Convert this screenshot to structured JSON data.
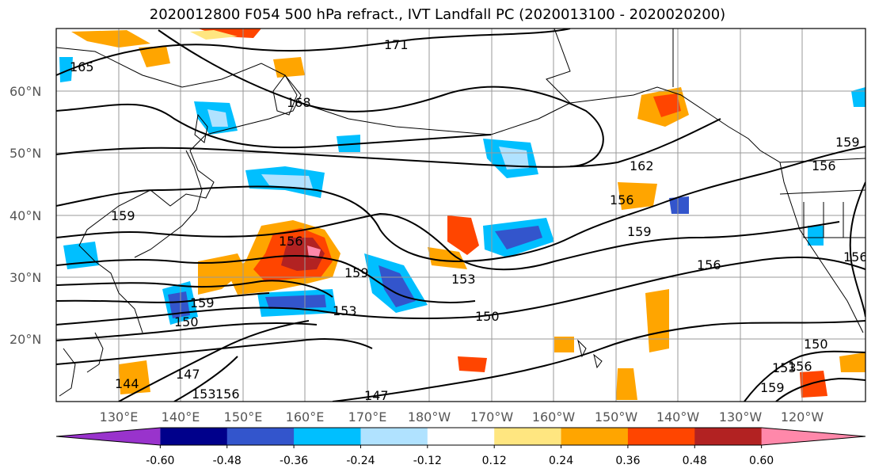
{
  "title": "2020012800 F054 500 hPa refract., IVT Landfall PC (2020013100 - 2020020200)",
  "map": {
    "lat_labels": [
      "60°N",
      "50°N",
      "40°N",
      "30°N",
      "20°N"
    ],
    "lon_labels": [
      "130°E",
      "140°E",
      "150°E",
      "160°E",
      "170°E",
      "180°W",
      "170°W",
      "160°W",
      "150°W",
      "140°W",
      "130°W",
      "120°W"
    ],
    "contour_labels": [
      "165",
      "171",
      "168",
      "159",
      "162",
      "156",
      "156",
      "159",
      "156",
      "159",
      "153",
      "150",
      "153",
      "159",
      "150",
      "144",
      "147",
      "153",
      "156",
      "147",
      "156",
      "159",
      "150",
      "153",
      "156",
      "159",
      "156"
    ]
  },
  "colorbar": {
    "colors": [
      "#9933cc",
      "#00008b",
      "#3355cc",
      "#00bfff",
      "#b0e2ff",
      "#ffffff",
      "#ffe680",
      "#ffa500",
      "#ff4500",
      "#b22222",
      "#ff88aa"
    ],
    "tick_labels": [
      "-0.60",
      "-0.48",
      "-0.36",
      "-0.24",
      "-0.12",
      "0.12",
      "0.24",
      "0.36",
      "0.48",
      "0.60"
    ]
  }
}
